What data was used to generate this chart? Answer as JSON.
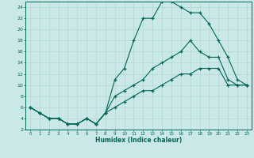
{
  "xlabel": "Humidex (Indice chaleur)",
  "ylabel": "",
  "bg_color": "#cbe8e8",
  "grid_color": "#b0d8d0",
  "line_color": "#006655",
  "xlim": [
    -0.5,
    23.5
  ],
  "ylim": [
    2,
    25
  ],
  "xticks": [
    0,
    1,
    2,
    3,
    4,
    5,
    6,
    7,
    8,
    9,
    10,
    11,
    12,
    13,
    14,
    15,
    16,
    17,
    18,
    19,
    20,
    21,
    22,
    23
  ],
  "yticks": [
    2,
    4,
    6,
    8,
    10,
    12,
    14,
    16,
    18,
    20,
    22,
    24
  ],
  "line1_x": [
    0,
    1,
    2,
    3,
    4,
    5,
    6,
    7,
    8,
    9,
    10,
    11,
    12,
    13,
    14,
    15,
    16,
    17,
    18,
    19,
    20,
    21,
    22,
    23
  ],
  "line1_y": [
    6,
    5,
    4,
    4,
    3,
    3,
    4,
    3,
    5,
    11,
    13,
    18,
    22,
    22,
    25,
    25,
    24,
    23,
    23,
    21,
    18,
    15,
    11,
    10
  ],
  "line2_x": [
    0,
    1,
    2,
    3,
    4,
    5,
    6,
    7,
    8,
    9,
    10,
    11,
    12,
    13,
    14,
    15,
    16,
    17,
    18,
    19,
    20,
    21,
    22,
    23
  ],
  "line2_y": [
    6,
    5,
    4,
    4,
    3,
    3,
    4,
    3,
    5,
    8,
    9,
    10,
    11,
    13,
    14,
    15,
    16,
    18,
    16,
    15,
    15,
    11,
    10,
    10
  ],
  "line3_x": [
    0,
    1,
    2,
    3,
    4,
    5,
    6,
    7,
    8,
    9,
    10,
    11,
    12,
    13,
    14,
    15,
    16,
    17,
    18,
    19,
    20,
    21,
    22,
    23
  ],
  "line3_y": [
    6,
    5,
    4,
    4,
    3,
    3,
    4,
    3,
    5,
    6,
    7,
    8,
    9,
    9,
    10,
    11,
    12,
    12,
    13,
    13,
    13,
    10,
    10,
    10
  ]
}
